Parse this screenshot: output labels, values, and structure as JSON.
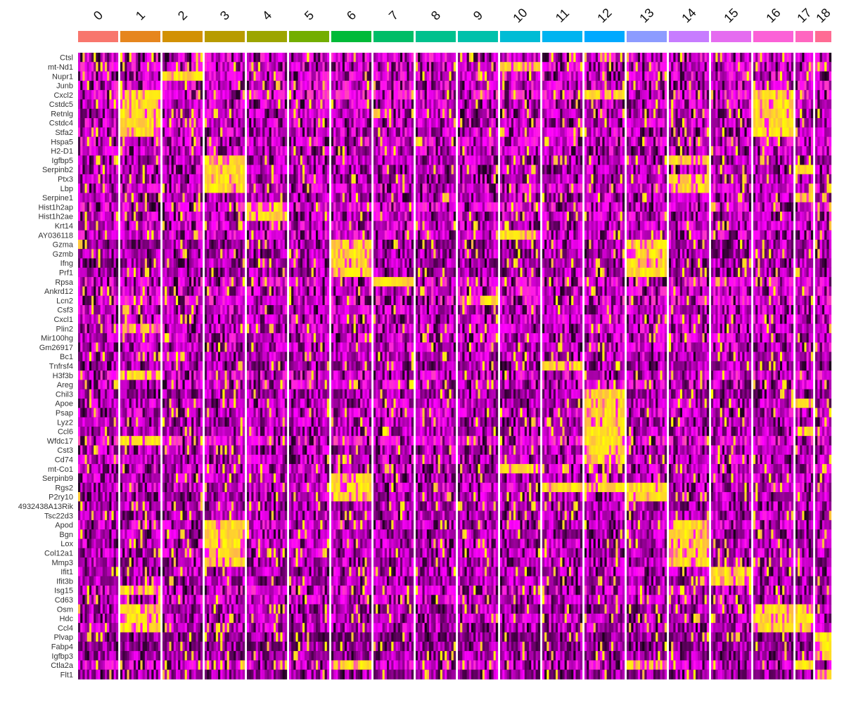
{
  "chart_data": {
    "type": "heatmap",
    "title": "",
    "xlabel": "",
    "ylabel": "",
    "clusters": [
      {
        "label": "0",
        "color": "#F8766D",
        "relative_size": 5.7
      },
      {
        "label": "1",
        "color": "#E6861E",
        "relative_size": 5.7
      },
      {
        "label": "2",
        "color": "#D29103",
        "relative_size": 5.7
      },
      {
        "label": "3",
        "color": "#B89B00",
        "relative_size": 5.7
      },
      {
        "label": "4",
        "color": "#9CA500",
        "relative_size": 5.7
      },
      {
        "label": "5",
        "color": "#73AE00",
        "relative_size": 5.7
      },
      {
        "label": "6",
        "color": "#00BA38",
        "relative_size": 5.7
      },
      {
        "label": "7",
        "color": "#00BD67",
        "relative_size": 5.7
      },
      {
        "label": "8",
        "color": "#00C18D",
        "relative_size": 5.7
      },
      {
        "label": "9",
        "color": "#00C1AB",
        "relative_size": 5.7
      },
      {
        "label": "10",
        "color": "#00BCD5",
        "relative_size": 5.7
      },
      {
        "label": "11",
        "color": "#00B4F0",
        "relative_size": 5.7
      },
      {
        "label": "12",
        "color": "#00A9FF",
        "relative_size": 5.7
      },
      {
        "label": "13",
        "color": "#8C9BFF",
        "relative_size": 5.7
      },
      {
        "label": "14",
        "color": "#C77CFF",
        "relative_size": 5.7
      },
      {
        "label": "15",
        "color": "#E56CF0",
        "relative_size": 5.7
      },
      {
        "label": "16",
        "color": "#FB61D7",
        "relative_size": 5.7
      },
      {
        "label": "17",
        "color": "#FF66C0",
        "relative_size": 2.5
      },
      {
        "label": "18",
        "color": "#FF6B94",
        "relative_size": 2.3
      }
    ],
    "genes": [
      {
        "name": "Ctsl",
        "base": 0.45,
        "high": []
      },
      {
        "name": "mt-Nd1",
        "base": 0.45,
        "high": [
          10
        ]
      },
      {
        "name": "Nupr1",
        "base": 0.45,
        "high": [
          2
        ]
      },
      {
        "name": "Junb",
        "base": 0.45,
        "high": []
      },
      {
        "name": "Cxcl2",
        "base": 0.55,
        "high": [
          1,
          12,
          16
        ]
      },
      {
        "name": "Cstdc5",
        "base": 0.4,
        "high": [
          1,
          16
        ]
      },
      {
        "name": "Retnlg",
        "base": 0.4,
        "high": [
          1,
          16
        ]
      },
      {
        "name": "Cstdc4",
        "base": 0.4,
        "high": [
          1,
          16
        ]
      },
      {
        "name": "Stfa2",
        "base": 0.4,
        "high": [
          1,
          16
        ]
      },
      {
        "name": "Hspa5",
        "base": 0.45,
        "high": []
      },
      {
        "name": "H2-D1",
        "base": 0.4,
        "high": []
      },
      {
        "name": "Igfbp5",
        "base": 0.35,
        "high": [
          3,
          14
        ]
      },
      {
        "name": "Serpinb2",
        "base": 0.35,
        "high": [
          3,
          17
        ]
      },
      {
        "name": "Ptx3",
        "base": 0.35,
        "high": [
          3,
          14
        ]
      },
      {
        "name": "Lbp",
        "base": 0.45,
        "high": [
          3,
          14
        ]
      },
      {
        "name": "Serpine1",
        "base": 0.35,
        "high": [
          17
        ]
      },
      {
        "name": "Hist1h2ap",
        "base": 0.5,
        "high": [
          4
        ]
      },
      {
        "name": "Hist1h2ae",
        "base": 0.4,
        "high": [
          4
        ]
      },
      {
        "name": "Krt14",
        "base": 0.4,
        "high": []
      },
      {
        "name": "AY036118",
        "base": 0.45,
        "high": [
          10
        ]
      },
      {
        "name": "Gzma",
        "base": 0.3,
        "high": [
          6,
          13
        ]
      },
      {
        "name": "Gzmb",
        "base": 0.3,
        "high": [
          6,
          13
        ]
      },
      {
        "name": "Ifng",
        "base": 0.3,
        "high": [
          6,
          13
        ]
      },
      {
        "name": "Prf1",
        "base": 0.3,
        "high": [
          6,
          13
        ]
      },
      {
        "name": "Rpsa",
        "base": 0.5,
        "high": [
          7
        ]
      },
      {
        "name": "Ankrd12",
        "base": 0.45,
        "high": []
      },
      {
        "name": "Lcn2",
        "base": 0.5,
        "high": [
          9
        ]
      },
      {
        "name": "Csf3",
        "base": 0.4,
        "high": []
      },
      {
        "name": "Cxcl1",
        "base": 0.4,
        "high": []
      },
      {
        "name": "Plin2",
        "base": 0.4,
        "high": [
          1
        ]
      },
      {
        "name": "Mir100hg",
        "base": 0.4,
        "high": []
      },
      {
        "name": "Gm26917",
        "base": 0.4,
        "high": []
      },
      {
        "name": "Bc1",
        "base": 0.35,
        "high": []
      },
      {
        "name": "Tnfrsf4",
        "base": 0.3,
        "high": [
          11
        ]
      },
      {
        "name": "H3f3b",
        "base": 0.45,
        "high": [
          1
        ]
      },
      {
        "name": "Areg",
        "base": 0.45,
        "high": []
      },
      {
        "name": "Chil3",
        "base": 0.25,
        "high": [
          12
        ]
      },
      {
        "name": "Apoe",
        "base": 0.35,
        "high": [
          12,
          17
        ]
      },
      {
        "name": "Psap",
        "base": 0.4,
        "high": [
          12
        ]
      },
      {
        "name": "Lyz2",
        "base": 0.35,
        "high": [
          12
        ]
      },
      {
        "name": "Ccl6",
        "base": 0.35,
        "high": [
          12,
          17
        ]
      },
      {
        "name": "Wfdc17",
        "base": 0.55,
        "high": [
          1,
          12
        ]
      },
      {
        "name": "Cst3",
        "base": 0.35,
        "high": [
          12
        ]
      },
      {
        "name": "Cd74",
        "base": 0.4,
        "high": [
          12
        ]
      },
      {
        "name": "mt-Co1",
        "base": 0.4,
        "high": [
          10
        ]
      },
      {
        "name": "Serpinb9",
        "base": 0.35,
        "high": [
          6
        ]
      },
      {
        "name": "Rgs2",
        "base": 0.4,
        "high": [
          6,
          11,
          12,
          13
        ]
      },
      {
        "name": "P2ry10",
        "base": 0.35,
        "high": [
          6,
          13
        ]
      },
      {
        "name": "4932438A13Rik",
        "base": 0.35,
        "high": []
      },
      {
        "name": "Tsc22d3",
        "base": 0.35,
        "high": []
      },
      {
        "name": "Apod",
        "base": 0.4,
        "high": [
          3,
          14
        ]
      },
      {
        "name": "Bgn",
        "base": 0.35,
        "high": [
          3,
          14
        ]
      },
      {
        "name": "Lox",
        "base": 0.35,
        "high": [
          3,
          14
        ]
      },
      {
        "name": "Col12a1",
        "base": 0.35,
        "high": [
          3,
          14
        ]
      },
      {
        "name": "Mmp3",
        "base": 0.35,
        "high": [
          3,
          14
        ]
      },
      {
        "name": "Ifit1",
        "base": 0.35,
        "high": [
          15
        ]
      },
      {
        "name": "Ifit3b",
        "base": 0.3,
        "high": [
          15
        ]
      },
      {
        "name": "Isg15",
        "base": 0.45,
        "high": [
          1
        ]
      },
      {
        "name": "Cd63",
        "base": 0.4,
        "high": []
      },
      {
        "name": "Osm",
        "base": 0.3,
        "high": [
          1,
          16,
          17
        ]
      },
      {
        "name": "Hdc",
        "base": 0.35,
        "high": [
          1,
          16,
          17
        ]
      },
      {
        "name": "Ccl4",
        "base": 0.35,
        "high": [
          1,
          16,
          17
        ]
      },
      {
        "name": "Plvap",
        "base": 0.2,
        "high": [
          18
        ]
      },
      {
        "name": "Fabp4",
        "base": 0.2,
        "high": [
          18
        ]
      },
      {
        "name": "Igfbp3",
        "base": 0.25,
        "high": [
          18
        ]
      },
      {
        "name": "Ctla2a",
        "base": 0.45,
        "high": [
          6,
          13,
          17
        ]
      },
      {
        "name": "Flt1",
        "base": 0.25,
        "high": [
          18
        ]
      }
    ],
    "colorscale": [
      "#000000",
      "#FF00FF",
      "#FFFF00"
    ],
    "legend": "none",
    "grid": false
  }
}
